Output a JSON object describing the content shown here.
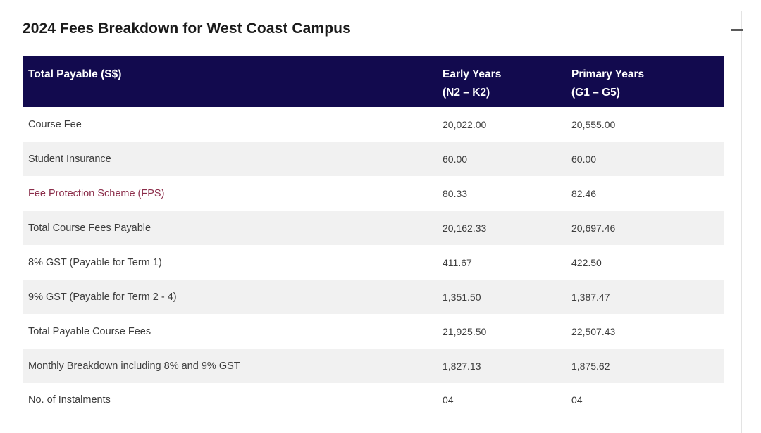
{
  "section": {
    "title": "2024 Fees Breakdown for West Coast Campus",
    "collapse_icon": "minus-icon"
  },
  "table": {
    "header": {
      "col0": "Total Payable (S$)",
      "col1_line1": "Early Years",
      "col1_line2": "(N2 – K2)",
      "col2_line1": "Primary Years",
      "col2_line2": "(G1 – G5)"
    },
    "rows": [
      {
        "label": "Course Fee",
        "early": "20,022.00",
        "primary": "20,555.00"
      },
      {
        "label": "Student Insurance",
        "early": "60.00",
        "primary": "60.00"
      },
      {
        "label": "Fee Protection Scheme (FPS)",
        "early": "80.33",
        "primary": "82.46",
        "is_link": true
      },
      {
        "label": "Total Course Fees Payable",
        "early": "20,162.33",
        "primary": "20,697.46"
      },
      {
        "label": "8% GST (Payable for Term 1)",
        "early": "411.67",
        "primary": "422.50"
      },
      {
        "label": "9% GST (Payable for Term 2 - 4)",
        "early": "1,351.50",
        "primary": "1,387.47"
      },
      {
        "label": "Total Payable Course Fees",
        "early": "21,925.50",
        "primary": "22,507.43"
      },
      {
        "label": "Monthly Breakdown including 8% and 9% GST",
        "early": "1,827.13",
        "primary": "1,875.62"
      },
      {
        "label": "No. of Instalments",
        "early": "04",
        "primary": "04"
      }
    ]
  },
  "colors": {
    "header_bg": "#120a4e",
    "header_text": "#ffffff",
    "row_stripe": "#f1f1f1",
    "link": "#8b2d4a",
    "body_text": "#3d3d3d"
  }
}
